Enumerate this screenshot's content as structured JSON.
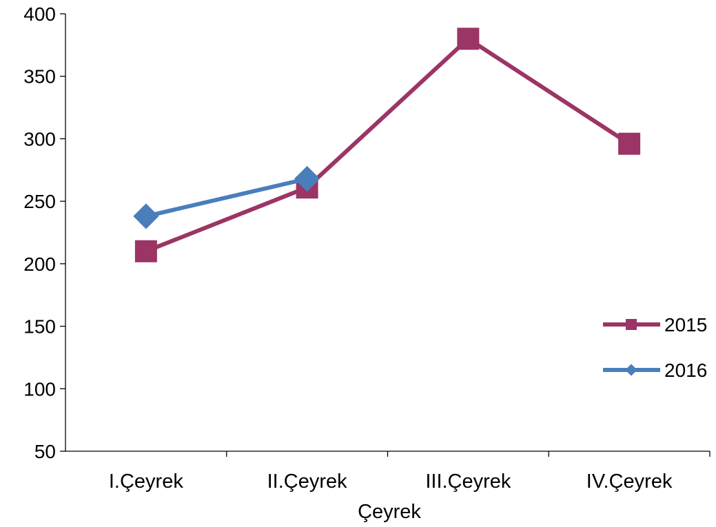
{
  "chart_data": {
    "type": "line",
    "title": "",
    "xlabel": "Çeyrek",
    "ylabel": "",
    "categories": [
      "I.Çeyrek",
      "II.Çeyrek",
      "III.Çeyrek",
      "IV.Çeyrek"
    ],
    "ylim": [
      50,
      400
    ],
    "yticks": [
      50,
      100,
      150,
      200,
      250,
      300,
      350,
      400
    ],
    "grid": false,
    "legend_position": "right",
    "series": [
      {
        "name": "2015",
        "values": [
          210,
          261,
          380,
          296
        ],
        "color": "#9b3565",
        "marker": "square"
      },
      {
        "name": "2016",
        "values": [
          238,
          268,
          null,
          null
        ],
        "color": "#4a7ebb",
        "marker": "diamond"
      }
    ]
  }
}
